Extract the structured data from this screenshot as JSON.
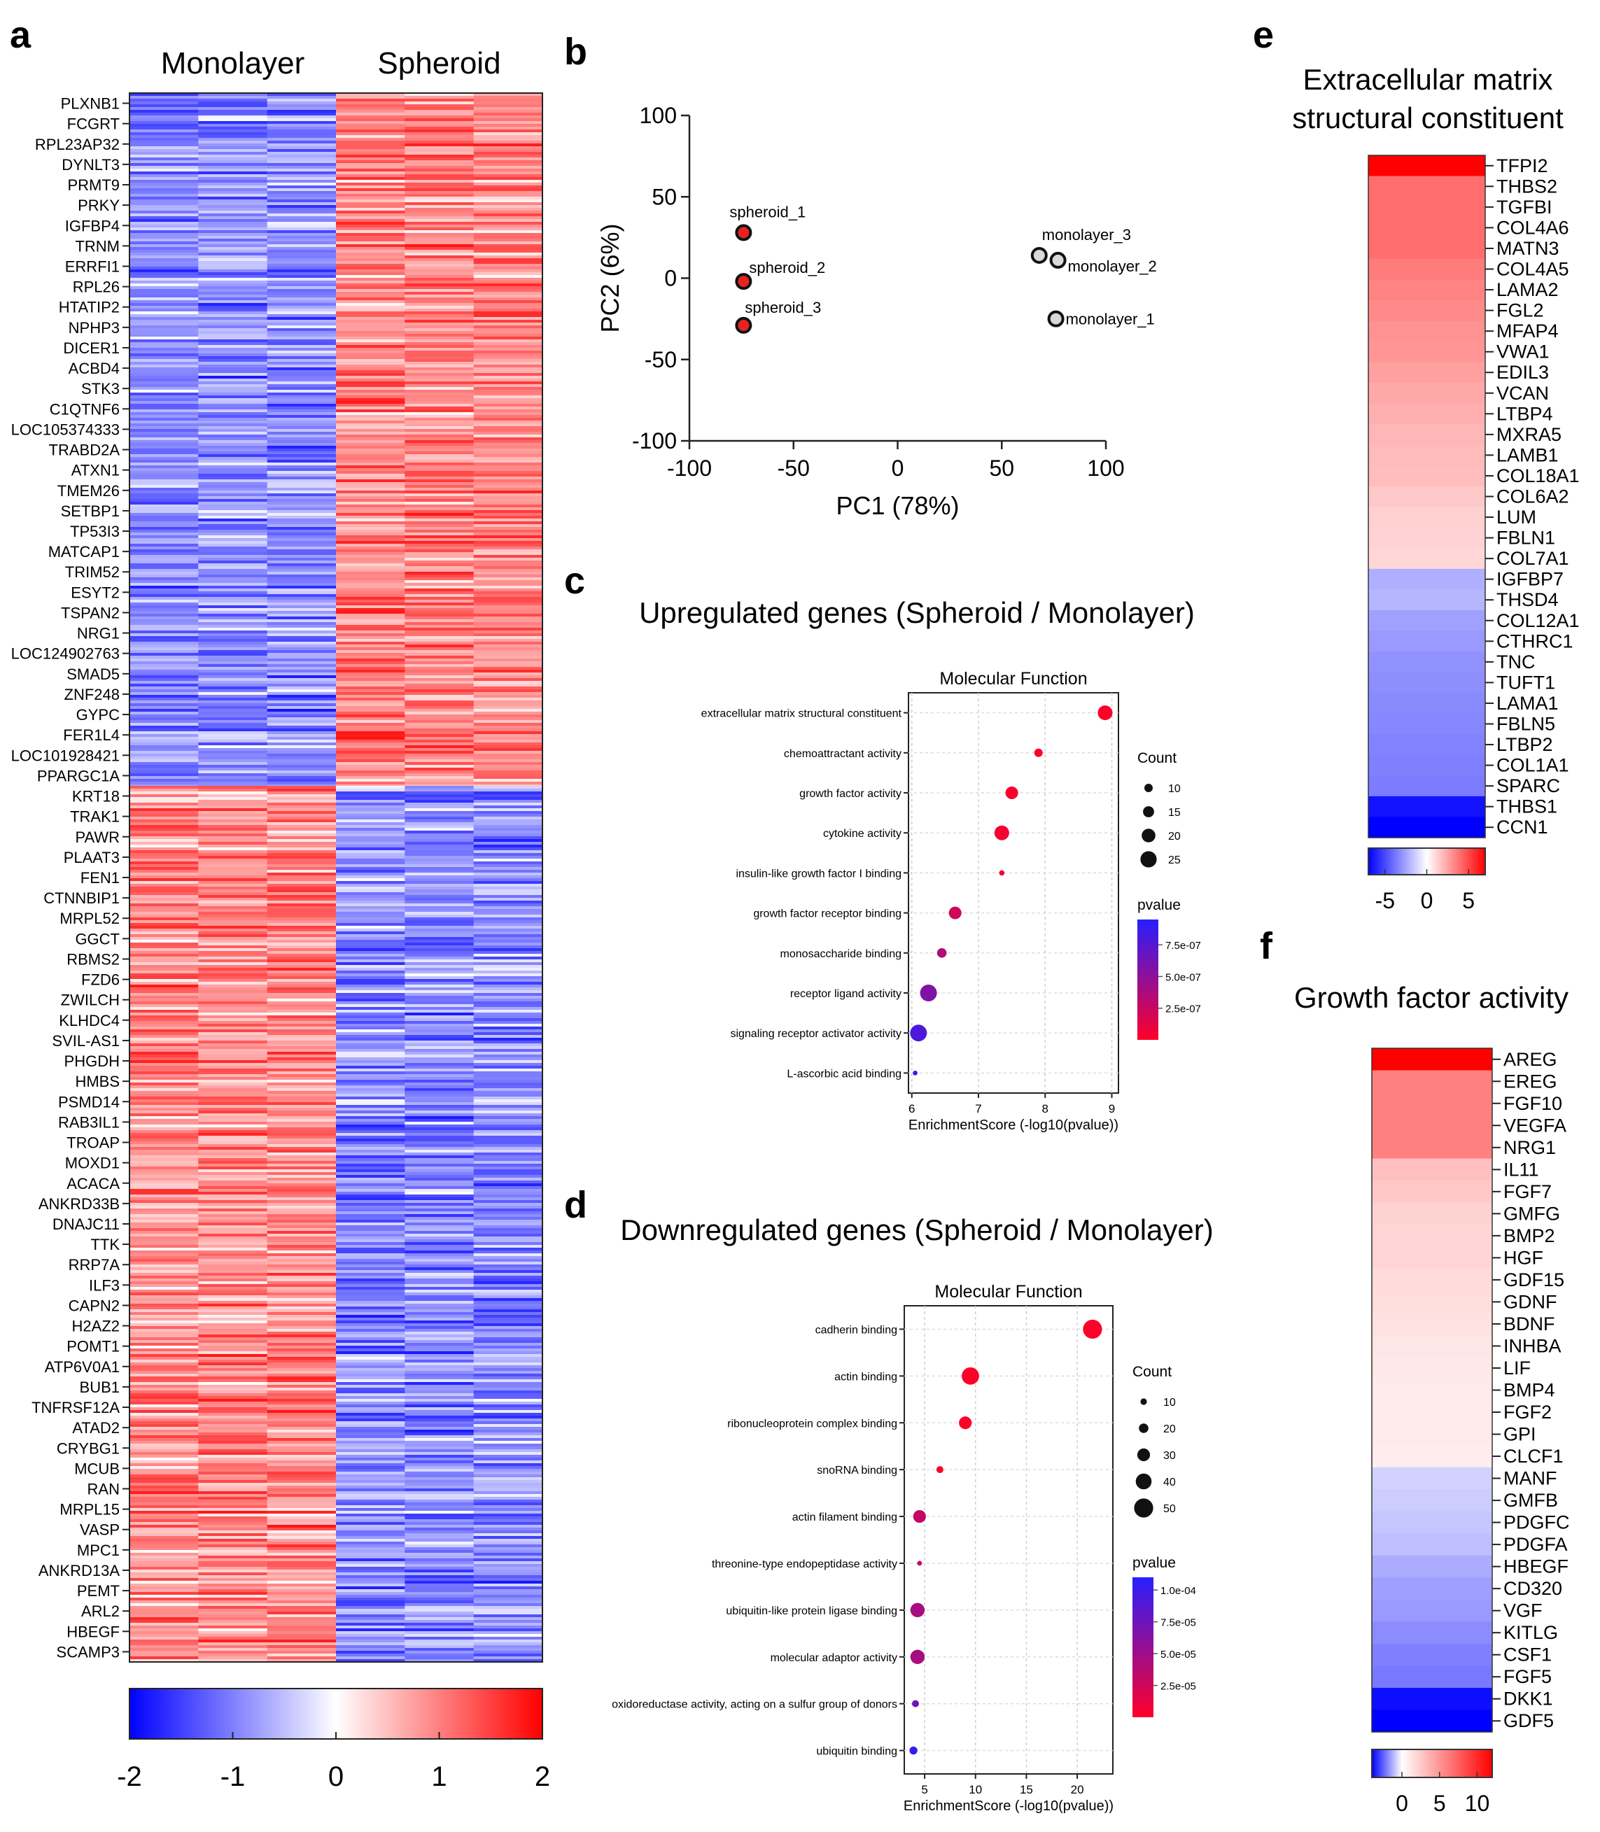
{
  "figure": {
    "panel_labels": [
      "a",
      "b",
      "c",
      "d",
      "e",
      "f"
    ]
  },
  "colors": {
    "low": "#0000ff",
    "mid": "#ffffff",
    "high": "#ff0000",
    "point_spheroid": "#e8231f",
    "point_monolayer": "#d9d9d9"
  },
  "chart_data": [
    {
      "panel": "a",
      "type": "heatmap",
      "column_groups": [
        "Monolayer",
        "Spheroid"
      ],
      "n_samples_per_group": 3,
      "colorbar": {
        "min": -2,
        "max": 2,
        "ticks": [
          "-2",
          "-1",
          "0",
          "1",
          "2"
        ]
      },
      "genes_up_in_spheroid": [
        "PLXNB1",
        "FCGRT",
        "RPL23AP32",
        "DYNLT3",
        "PRMT9",
        "PRKY",
        "IGFBP4",
        "TRNM",
        "ERRFI1",
        "RPL26",
        "HTATIP2",
        "NPHP3",
        "DICER1",
        "ACBD4",
        "STK3",
        "C1QTNF6",
        "LOC105374333",
        "TRABD2A",
        "ATXN1",
        "TMEM26",
        "SETBP1",
        "TP53I3",
        "MATCAP1",
        "TRIM52",
        "ESYT2",
        "TSPAN2",
        "NRG1",
        "LOC124902763",
        "SMAD5",
        "ZNF248",
        "GYPC",
        "FER1L4",
        "LOC101928421",
        "PPARGC1A"
      ],
      "genes_down_in_spheroid": [
        "KRT18",
        "TRAK1",
        "PAWR",
        "PLAAT3",
        "FEN1",
        "CTNNBIP1",
        "MRPL52",
        "GGCT",
        "RBMS2",
        "FZD6",
        "ZWILCH",
        "KLHDC4",
        "SVIL-AS1",
        "PHGDH",
        "HMBS",
        "PSMD14",
        "RAB3IL1",
        "TROAP",
        "MOXD1",
        "ACACA",
        "ANKRD33B",
        "DNAJC11",
        "TTK",
        "RRP7A",
        "ILF3",
        "CAPN2",
        "H2AZ2",
        "POMT1",
        "ATP6V0A1",
        "BUB1",
        "TNFRSF12A",
        "ATAD2",
        "CRYBG1",
        "MCUB",
        "RAN",
        "MRPL15",
        "VASP",
        "MPC1",
        "ANKRD13A",
        "PEMT",
        "ARL2",
        "HBEGF",
        "SCAMP3"
      ],
      "up_group_mean_z": {
        "Monolayer": -0.9,
        "Spheroid": 0.9
      },
      "down_group_mean_z": {
        "Monolayer": 0.9,
        "Spheroid": -0.9
      }
    },
    {
      "panel": "b",
      "type": "scatter",
      "xlabel": "PC1 (78%)",
      "ylabel": "PC2 (6%)",
      "xlim": [
        -100,
        100
      ],
      "ylim": [
        -100,
        100
      ],
      "xticks": [
        -100,
        -50,
        0,
        50,
        100
      ],
      "yticks": [
        100,
        50,
        0,
        -50,
        -100
      ],
      "points": [
        {
          "name": "spheroid_1",
          "x": -74,
          "y": 28,
          "group": "spheroid"
        },
        {
          "name": "spheroid_2",
          "x": -74,
          "y": -2,
          "group": "spheroid"
        },
        {
          "name": "spheroid_3",
          "x": -74,
          "y": -29,
          "group": "spheroid"
        },
        {
          "name": "monolayer_3",
          "x": 68,
          "y": 14,
          "group": "monolayer"
        },
        {
          "name": "monolayer_2",
          "x": 77,
          "y": 11,
          "group": "monolayer"
        },
        {
          "name": "monolayer_1",
          "x": 76,
          "y": -25,
          "group": "monolayer"
        }
      ]
    },
    {
      "panel": "c",
      "type": "scatter",
      "title": "Upregulated genes (Spheroid / Monolayer)",
      "subtitle": "Molecular Function",
      "xlabel": "EnrichmentScore (-log10(pvalue))",
      "xlim": [
        5.95,
        9.1
      ],
      "xticks": [
        6,
        7,
        8,
        9
      ],
      "count_legend_title": "Count",
      "count_legend": [
        10,
        15,
        20,
        25
      ],
      "count_range": [
        2,
        26
      ],
      "pvalue_legend_title": "pvalue",
      "pvalue_ticks": [
        "7.5e-07",
        "5.0e-07",
        "2.5e-07"
      ],
      "pvalue_tick_values": [
        7.5e-07,
        5e-07,
        2.5e-07
      ],
      "pvalue_range": [
        0,
        9.5e-07
      ],
      "terms": [
        {
          "term": "extracellular matrix structural constituent",
          "score": 8.9,
          "count": 22,
          "pvalue": 1.3e-09
        },
        {
          "term": "chemoattractant activity",
          "score": 7.9,
          "count": 10,
          "pvalue": 1.3e-08
        },
        {
          "term": "growth factor activity",
          "score": 7.5,
          "count": 18,
          "pvalue": 3.2e-08
        },
        {
          "term": "cytokine activity",
          "score": 7.35,
          "count": 22,
          "pvalue": 4.5e-08
        },
        {
          "term": "insulin-like growth factor I binding",
          "score": 7.35,
          "count": 4,
          "pvalue": 4.5e-08
        },
        {
          "term": "growth factor receptor binding",
          "score": 6.65,
          "count": 18,
          "pvalue": 2.2e-07
        },
        {
          "term": "monosaccharide binding",
          "score": 6.45,
          "count": 12,
          "pvalue": 3.5e-07
        },
        {
          "term": "receptor ligand activity",
          "score": 6.25,
          "count": 26,
          "pvalue": 5.6e-07
        },
        {
          "term": "signaling receptor activator activity",
          "score": 6.1,
          "count": 26,
          "pvalue": 7.9e-07
        },
        {
          "term": "L-ascorbic acid binding",
          "score": 6.05,
          "count": 3,
          "pvalue": 8.9e-07
        }
      ]
    },
    {
      "panel": "d",
      "type": "scatter",
      "title": "Downregulated genes (Spheroid / Monolayer)",
      "subtitle": "Molecular Function",
      "xlabel": "EnrichmentScore (-log10(pvalue))",
      "xlim": [
        3.0,
        23.5
      ],
      "xticks": [
        5,
        10,
        15,
        20
      ],
      "count_legend_title": "Count",
      "count_legend": [
        10,
        20,
        30,
        40,
        50
      ],
      "count_range": [
        3,
        52
      ],
      "pvalue_legend_title": "pvalue",
      "pvalue_ticks": [
        "1.0e-04",
        "7.5e-05",
        "5.0e-05",
        "2.5e-05"
      ],
      "pvalue_tick_values": [
        0.0001,
        7.5e-05,
        5e-05,
        2.5e-05
      ],
      "pvalue_range": [
        0,
        0.00011
      ],
      "terms": [
        {
          "term": "cadherin binding",
          "score": 21.5,
          "count": 50,
          "pvalue": 1e-21
        },
        {
          "term": "actin binding",
          "score": 9.5,
          "count": 45,
          "pvalue": 3e-10
        },
        {
          "term": "ribonucleoprotein complex binding",
          "score": 9.0,
          "count": 30,
          "pvalue": 1e-09
        },
        {
          "term": "snoRNA binding",
          "score": 6.5,
          "count": 12,
          "pvalue": 3e-07
        },
        {
          "term": "actin filament binding",
          "score": 4.5,
          "count": 30,
          "pvalue": 3e-05
        },
        {
          "term": "threonine-type endopeptidase activity",
          "score": 4.5,
          "count": 5,
          "pvalue": 3e-05
        },
        {
          "term": "ubiquitin-like protein ligase binding",
          "score": 4.3,
          "count": 35,
          "pvalue": 4.5e-05
        },
        {
          "term": "molecular adaptor activity",
          "score": 4.3,
          "count": 35,
          "pvalue": 4.5e-05
        },
        {
          "term": "oxidoreductase activity, acting on a sulfur group of donors",
          "score": 4.1,
          "count": 12,
          "pvalue": 7.5e-05
        },
        {
          "term": "ubiquitin binding",
          "score": 3.9,
          "count": 15,
          "pvalue": 0.000105
        }
      ]
    },
    {
      "panel": "e",
      "type": "heatmap",
      "title_lines": [
        "Extracellular matrix",
        "structural constituent"
      ],
      "colorbar": {
        "min": -7,
        "max": 7,
        "ticks": [
          "-5",
          "0",
          "5"
        ],
        "tick_values": [
          -5,
          0,
          5
        ]
      },
      "genes": [
        "TFPI2",
        "THBS2",
        "TGFBI",
        "COL4A6",
        "MATN3",
        "COL4A5",
        "LAMA2",
        "FGL2",
        "MFAP4",
        "VWA1",
        "EDIL3",
        "VCAN",
        "LTBP4",
        "MXRA5",
        "LAMB1",
        "COL18A1",
        "COL6A2",
        "LUM",
        "FBLN1",
        "COL7A1",
        "IGFBP7",
        "THSD4",
        "COL12A1",
        "CTHRC1",
        "TNC",
        "TUFT1",
        "LAMA1",
        "FBLN5",
        "LTBP2",
        "COL1A1",
        "SPARC",
        "THBS1",
        "CCN1"
      ],
      "values": [
        7.0,
        4.0,
        4.0,
        4.0,
        4.0,
        3.6,
        3.4,
        3.2,
        3.0,
        2.9,
        2.6,
        2.4,
        2.2,
        2.0,
        1.9,
        1.8,
        1.5,
        1.3,
        1.2,
        1.1,
        -2.2,
        -2.0,
        -2.6,
        -2.8,
        -3.0,
        -3.1,
        -3.2,
        -3.3,
        -3.4,
        -3.5,
        -3.6,
        -6.5,
        -7.0
      ]
    },
    {
      "panel": "f",
      "type": "heatmap",
      "title": "Growth factor activity",
      "colorbar": {
        "min": -4,
        "max": 12,
        "ticks": [
          "0",
          "5",
          "10"
        ],
        "tick_values": [
          0,
          5,
          10
        ]
      },
      "genes": [
        "AREG",
        "EREG",
        "FGF10",
        "VEGFA",
        "NRG1",
        "IL11",
        "FGF7",
        "GMFG",
        "BMP2",
        "HGF",
        "GDF15",
        "GDNF",
        "BDNF",
        "INHBA",
        "LIF",
        "BMP4",
        "FGF2",
        "GPI",
        "CLCF1",
        "MANF",
        "GMFB",
        "PDGFC",
        "PDGFA",
        "HBEGF",
        "CD320",
        "VGF",
        "KITLG",
        "CSF1",
        "FGF5",
        "DKK1",
        "GDF5"
      ],
      "values": [
        12.0,
        6.0,
        6.0,
        6.0,
        6.0,
        3.0,
        2.6,
        2.1,
        2.0,
        2.0,
        1.7,
        1.6,
        1.4,
        1.2,
        1.1,
        1.0,
        1.0,
        1.0,
        0.9,
        -0.7,
        -0.8,
        -0.9,
        -1.0,
        -1.3,
        -1.5,
        -1.6,
        -1.8,
        -2.0,
        -2.1,
        -3.8,
        -4.0
      ]
    }
  ]
}
